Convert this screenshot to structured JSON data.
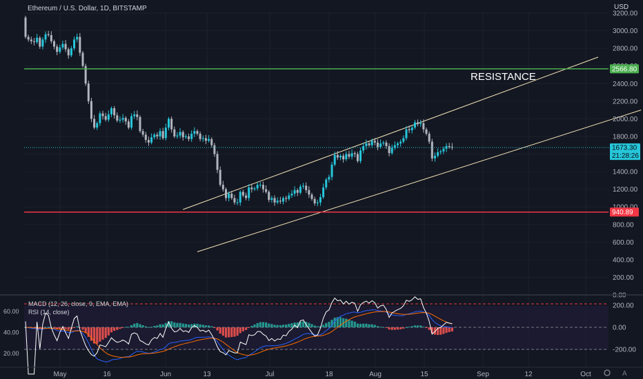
{
  "header": {
    "symbol_line": "Ethereum / U.S. Dollar, 1D, BITSTAMP",
    "currency": "USD"
  },
  "annotation": {
    "resistance_text": "RESISTANCE"
  },
  "indicators": {
    "macd_label": "MACD (12, 26, close, 9, EMA, EMA)",
    "rsi_label": "RSI (14, close)"
  },
  "footer": {
    "settings_icon": "gear-icon",
    "auto_label": "A"
  },
  "colors": {
    "background": "#131722",
    "grid": "#1f2433",
    "up_candle": "#26c6da",
    "down_candle": "#b2b5be",
    "resistance_line": "#4caf50",
    "support_line": "#f23645",
    "channel": "#f5e6b8",
    "macd_hist_pos": "#26a69a",
    "macd_hist_neg": "#ef5350",
    "rsi_line": "#ffffff",
    "macd_line": "#2962ff",
    "signal_line": "#ff6d00"
  },
  "chart_data": {
    "type": "candlestick",
    "title": "Ethereum / U.S. Dollar, 1D, BITSTAMP",
    "price_axis": {
      "ticks": [
        "3200.00",
        "3000.00",
        "2800.00",
        "2600.00",
        "2400.00",
        "2200.00",
        "2000.00",
        "1800.00",
        "1600.00",
        "1400.00",
        "1200.00",
        "1000.00",
        "800.00",
        "600.00",
        "400.00",
        "200.00",
        "0.00"
      ],
      "range": [
        0,
        3200
      ]
    },
    "time_axis": {
      "ticks": [
        "May",
        "16",
        "Jun",
        "13",
        "Jul",
        "18",
        "Aug",
        "15",
        "Sep",
        "12",
        "Oct"
      ]
    },
    "price_labels": {
      "resistance": "2566.80",
      "support": "940.89",
      "last": "1673.30",
      "countdown": "21:28:26"
    },
    "levels": {
      "resistance": 2566.8,
      "support": 940.89,
      "last": 1673.3
    },
    "channel": {
      "upper": [
        {
          "day": 55,
          "price": 970
        },
        {
          "day": 200,
          "price": 2700
        }
      ],
      "lower": [
        {
          "day": 60,
          "price": 490
        },
        {
          "day": 215,
          "price": 2100
        }
      ]
    },
    "candles_close": [
      2930,
      2900,
      2880,
      2870,
      2920,
      2820,
      2900,
      2960,
      2950,
      2880,
      2820,
      2760,
      2810,
      2850,
      2790,
      2720,
      2800,
      2900,
      2930,
      2750,
      2600,
      2400,
      2200,
      2000,
      1900,
      1950,
      2060,
      2030,
      1990,
      2050,
      2120,
      2040,
      1980,
      1990,
      2010,
      1970,
      1900,
      2030,
      2050,
      2020,
      1860,
      1820,
      1760,
      1730,
      1790,
      1820,
      1800,
      1860,
      1780,
      1900,
      2000,
      1880,
      1800,
      1810,
      1850,
      1790,
      1800,
      1770,
      1830,
      1860,
      1830,
      1770,
      1780,
      1750,
      1770,
      1700,
      1600,
      1420,
      1250,
      1200,
      1100,
      1150,
      1100,
      1050,
      1050,
      1170,
      1130,
      1100,
      1220,
      1200,
      1210,
      1250,
      1250,
      1200,
      1170,
      1080,
      1100,
      1050,
      1070,
      1060,
      1100,
      1090,
      1130,
      1150,
      1190,
      1160,
      1230,
      1240,
      1190,
      1140,
      1090,
      1040,
      1050,
      1110,
      1220,
      1310,
      1340,
      1480,
      1590,
      1560,
      1580,
      1540,
      1600,
      1570,
      1610,
      1600,
      1520,
      1640,
      1690,
      1720,
      1700,
      1750,
      1730,
      1680,
      1720,
      1730,
      1690,
      1610,
      1670,
      1700,
      1720,
      1740,
      1780,
      1880,
      1870,
      1900,
      1960,
      1940,
      1950,
      1880,
      1830,
      1740,
      1550,
      1580,
      1620,
      1630,
      1660,
      1690,
      1680,
      1673.3
    ],
    "rsi": {
      "ticks": [
        "60.00",
        "40.00",
        "20.00"
      ],
      "range": [
        15,
        70
      ]
    },
    "macd": {
      "ticks": [
        "200.00",
        "0.00",
        "-200.00"
      ],
      "range": [
        -300,
        230
      ]
    }
  }
}
